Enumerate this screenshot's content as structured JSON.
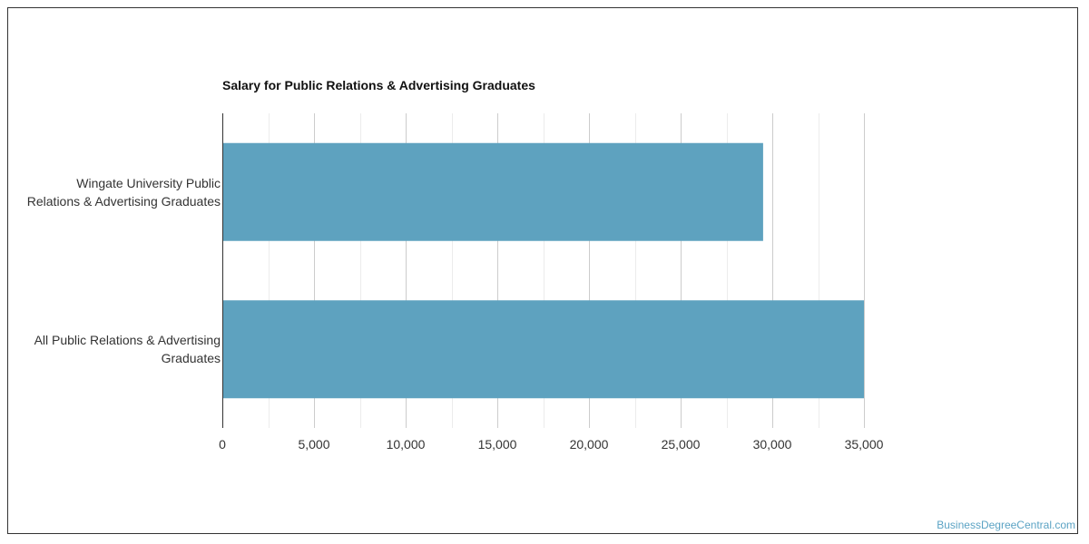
{
  "chart_data": {
    "type": "bar",
    "orientation": "horizontal",
    "title": "Salary for Public Relations & Advertising Graduates",
    "xlabel": "",
    "ylabel": "",
    "categories": [
      "Wingate University Public Relations & Advertising Graduates",
      "All Public Relations & Advertising Graduates"
    ],
    "category_lines": [
      [
        "Wingate University Public",
        "Relations & Advertising Graduates"
      ],
      [
        "All Public Relations & Advertising",
        "Graduates"
      ]
    ],
    "values": [
      29500,
      35000
    ],
    "xlim": [
      0,
      35000
    ],
    "x_ticks": [
      0,
      5000,
      10000,
      15000,
      20000,
      25000,
      30000,
      35000
    ],
    "x_tick_labels": [
      "0",
      "5,000",
      "10,000",
      "15,000",
      "20,000",
      "25,000",
      "30,000",
      "35,000"
    ],
    "grid": true,
    "bar_color": "#5ea2bf",
    "grid_color": "#dddddd"
  },
  "credit": "BusinessDegreeCentral.com",
  "colors": {
    "credit": "#5ba3c4",
    "axis": "#333333"
  }
}
